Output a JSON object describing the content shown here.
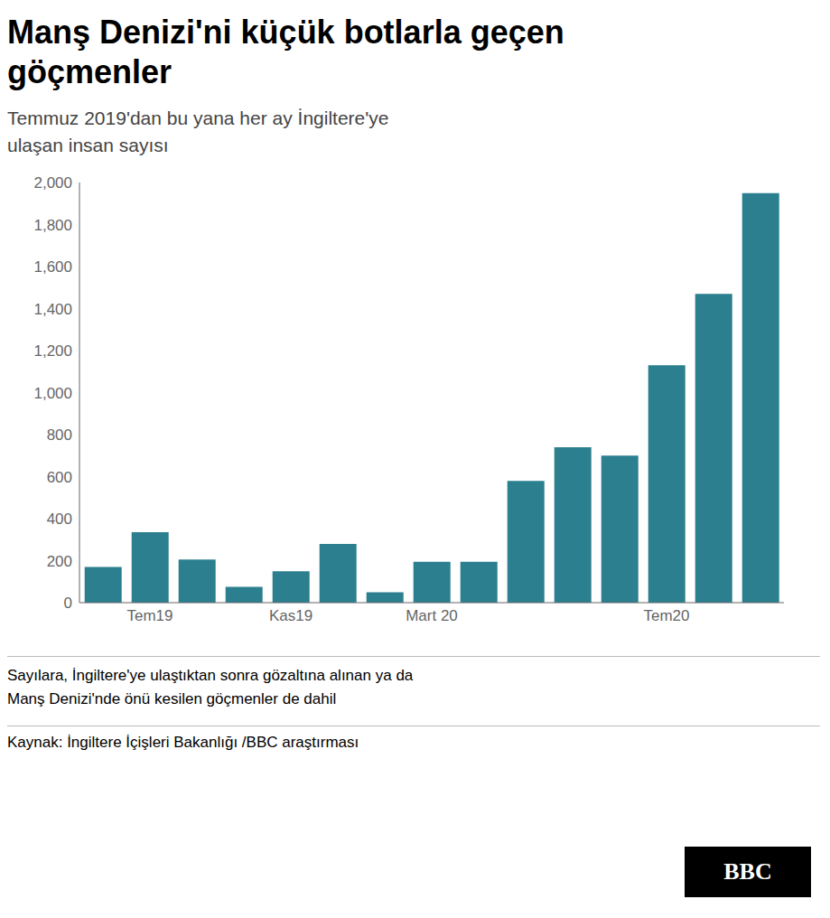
{
  "chart_data": {
    "type": "bar",
    "title": "Manş Denizi'ni küçük botlarla geçen\ngöçmenler",
    "subtitle": "Temmuz 2019'dan bu yana her ay İngiltere'ye\nulaşan insan sayısı",
    "categories": [
      null,
      "Tem19",
      null,
      null,
      "Kas19",
      null,
      null,
      "Mart 20",
      null,
      null,
      null,
      null,
      "Tem20",
      null,
      null
    ],
    "values": [
      170,
      335,
      205,
      75,
      150,
      280,
      50,
      195,
      195,
      580,
      740,
      700,
      1130,
      1470,
      1950
    ],
    "color": "#2b7f8e",
    "ylim": [
      0,
      2000
    ],
    "yticks": [
      0,
      200,
      400,
      600,
      800,
      {
        "value": 1000,
        "label": "1,000"
      },
      {
        "value": 1200,
        "label": "1,200"
      },
      {
        "value": 1400,
        "label": "1,400"
      },
      {
        "value": 1600,
        "label": "1,600"
      },
      {
        "value": 1800,
        "label": "1,800"
      },
      {
        "value": 2000,
        "label": "2,000"
      }
    ],
    "grid": false,
    "annotations": [
      "Sayılara, İngiltere'ye ulaştıktan sonra gözaltına alınan ya da\nManş Denizi'nde önü kesilen göçmenler de dahil",
      "Kaynak: İngiltere İçişleri Bakanlığı /BBC araştırması",
      "BBC"
    ]
  }
}
